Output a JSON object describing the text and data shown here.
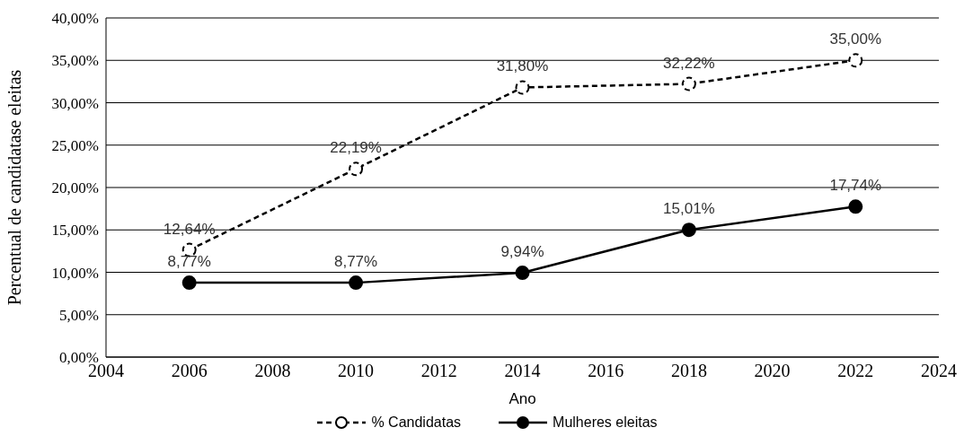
{
  "chart_data": {
    "type": "line",
    "xlabel": "Ano",
    "ylabel": "Percentual de candidatase eleitas",
    "x": [
      2006,
      2010,
      2014,
      2018,
      2022
    ],
    "series": [
      {
        "name": "% Candidatas",
        "color": "#000000",
        "line_style": "dashed",
        "marker": "circle",
        "values": [
          12.64,
          22.19,
          31.8,
          32.22,
          35.0
        ],
        "value_labels": [
          "12,64%",
          "22,19%",
          "31,80%",
          "32,22%",
          "35,00%"
        ]
      },
      {
        "name": "Mulheres eleitas",
        "color": "#000000",
        "line_style": "solid",
        "marker": "circle",
        "values": [
          8.77,
          8.77,
          9.94,
          15.01,
          17.74
        ],
        "value_labels": [
          "8,77%",
          "8,77%",
          "9,94%",
          "15,01%",
          "17,74%"
        ]
      }
    ],
    "xlim": [
      2004,
      2024
    ],
    "xticks": [
      2004,
      2006,
      2008,
      2010,
      2012,
      2014,
      2016,
      2018,
      2020,
      2022,
      2024
    ],
    "ylim": [
      0,
      40
    ],
    "yticks": [
      {
        "value": 0,
        "label": "0,00%"
      },
      {
        "value": 5,
        "label": "5,00%"
      },
      {
        "value": 10,
        "label": "10,00%"
      },
      {
        "value": 15,
        "label": "15,00%"
      },
      {
        "value": 20,
        "label": "20,00%"
      },
      {
        "value": 25,
        "label": "25,00%"
      },
      {
        "value": 30,
        "label": "30,00%"
      },
      {
        "value": 35,
        "label": "35,00%"
      },
      {
        "value": 40,
        "label": "40,00%"
      }
    ],
    "grid": "y",
    "legend": "bottom"
  }
}
